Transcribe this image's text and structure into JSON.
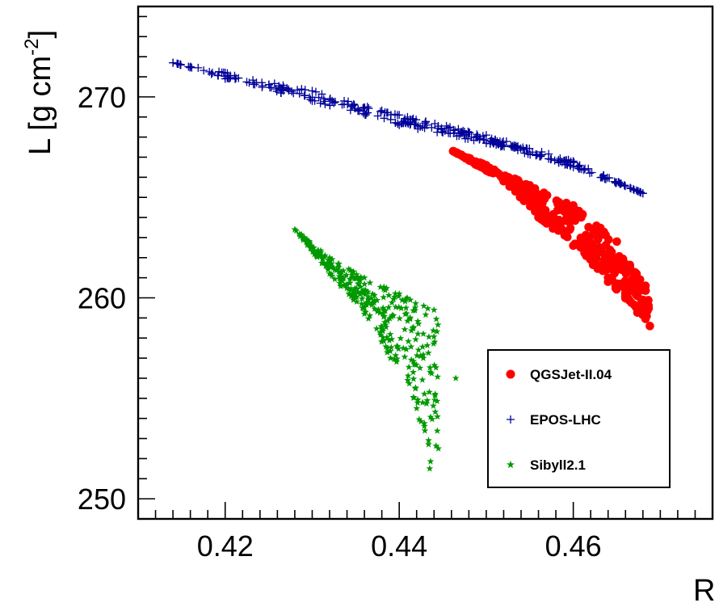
{
  "chart_data": {
    "type": "scatter",
    "title": "",
    "xlabel": "R",
    "ylabel_main": "L [g cm",
    "ylabel_sup": "-2",
    "ylabel_close": "]",
    "xlim": [
      0.41,
      0.476
    ],
    "ylim": [
      249,
      274.5
    ],
    "x_ticks": [
      {
        "value": 0.42,
        "label": "0.42"
      },
      {
        "value": 0.44,
        "label": "0.44"
      },
      {
        "value": 0.46,
        "label": "0.46"
      }
    ],
    "y_ticks": [
      {
        "value": 250,
        "label": "250"
      },
      {
        "value": 260,
        "label": "260"
      },
      {
        "value": 270,
        "label": "270"
      }
    ],
    "grid": false,
    "legend_position": "bottom-right",
    "series": [
      {
        "name": "QGSJet-II.04",
        "marker": "circle",
        "color": "#ff0000",
        "n": 360,
        "region": {
          "upper_edge": [
            [
              0.4462,
              267.3
            ],
            [
              0.45,
              266.6
            ],
            [
              0.455,
              265.6
            ],
            [
              0.46,
              264.6
            ],
            [
              0.465,
              262.8
            ],
            [
              0.4683,
              260.6
            ]
          ],
          "lower_edge": [
            [
              0.4462,
              267.3
            ],
            [
              0.452,
              265.8
            ],
            [
              0.456,
              264.0
            ],
            [
              0.46,
              262.6
            ],
            [
              0.464,
              260.8
            ],
            [
              0.4688,
              258.6
            ]
          ]
        }
      },
      {
        "name": "EPOS-LHC",
        "marker": "plus",
        "color": "#000099",
        "n": 330,
        "region": {
          "upper_edge": [
            [
              0.414,
              271.7
            ],
            [
              0.42,
              271.2
            ],
            [
              0.43,
              270.3
            ],
            [
              0.44,
              269.1
            ],
            [
              0.45,
              268.1
            ],
            [
              0.46,
              266.8
            ],
            [
              0.468,
              265.2
            ]
          ],
          "lower_edge": [
            [
              0.414,
              271.7
            ],
            [
              0.42,
              270.9
            ],
            [
              0.43,
              269.8
            ],
            [
              0.44,
              268.6
            ],
            [
              0.45,
              267.7
            ],
            [
              0.46,
              266.5
            ],
            [
              0.468,
              265.2
            ]
          ]
        }
      },
      {
        "name": "Sibyll2.1",
        "marker": "star",
        "color": "#009900",
        "n": 330,
        "region": {
          "upper_edge": [
            [
              0.428,
              263.4
            ],
            [
              0.432,
              262.0
            ],
            [
              0.436,
              261.0
            ],
            [
              0.44,
              260.2
            ],
            [
              0.444,
              259.4
            ],
            [
              0.4465,
              256.0
            ],
            [
              0.4445,
              252.5
            ]
          ],
          "lower_edge": [
            [
              0.428,
              263.4
            ],
            [
              0.432,
              261.2
            ],
            [
              0.436,
              259.2
            ],
            [
              0.439,
              257.0
            ],
            [
              0.442,
              254.5
            ],
            [
              0.4435,
              251.5
            ]
          ]
        }
      }
    ]
  }
}
